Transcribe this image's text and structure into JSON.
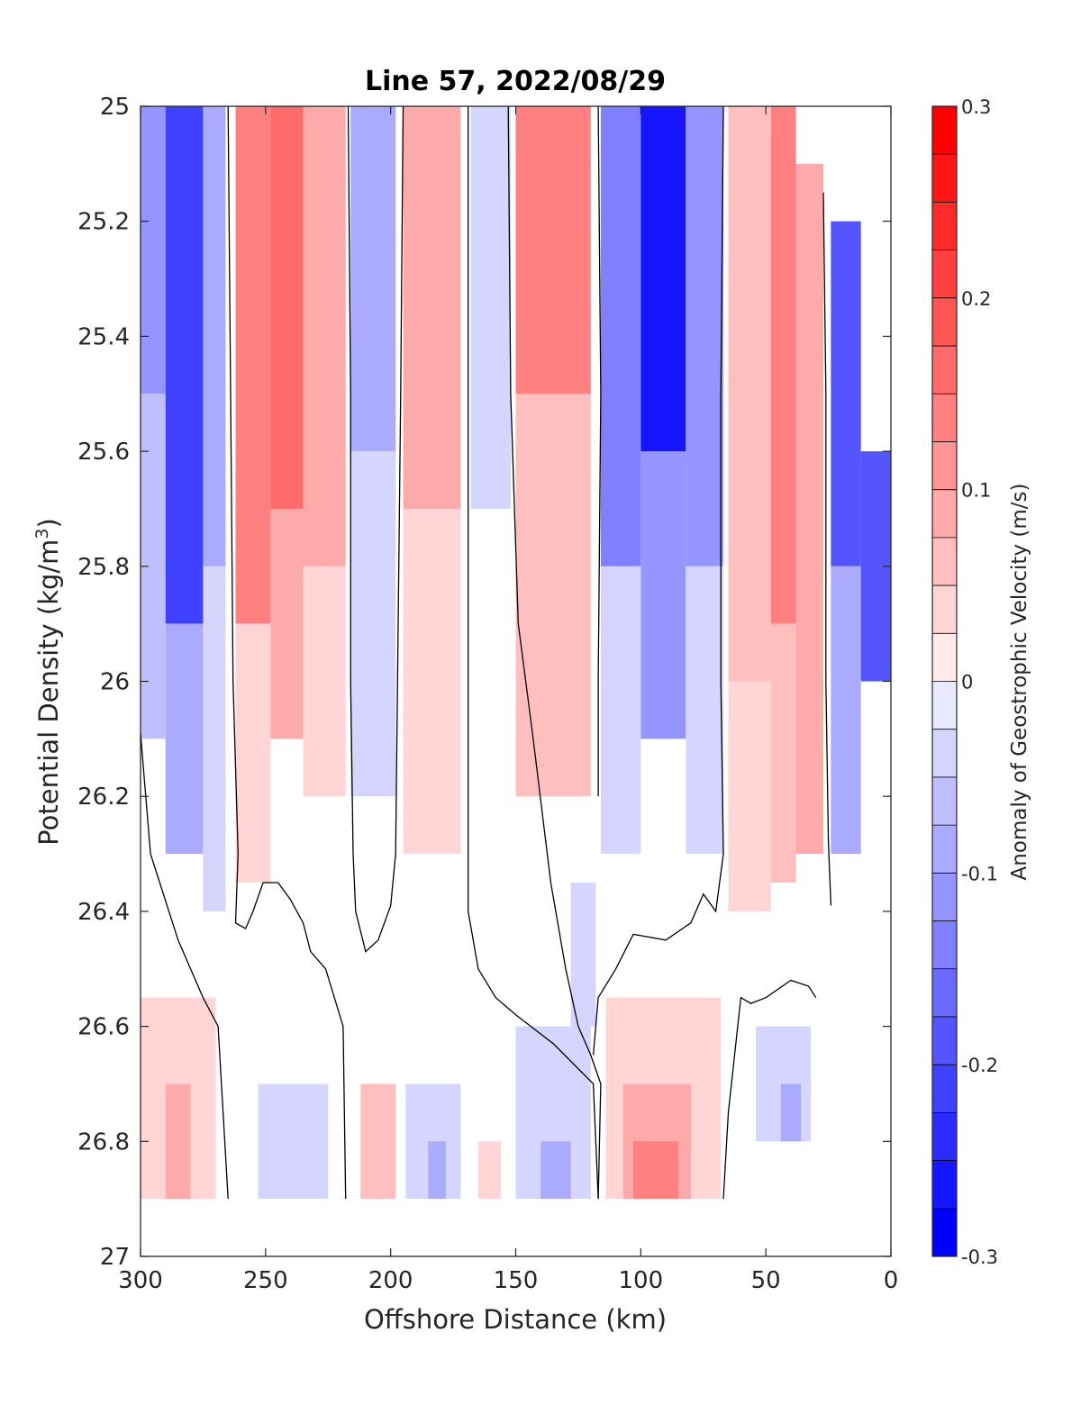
{
  "chart_data": {
    "type": "heatmap",
    "title": "Line 57, 2022/08/29",
    "xlabel": "Offshore Distance (km)",
    "ylabel_main": "Potential Density (kg/m",
    "ylabel_sup": "3",
    "ylabel_end": ")",
    "colorbar_label": "Anomaly of Geostrophic Velocity (m/s)",
    "xlim": [
      300,
      0
    ],
    "ylim": [
      25,
      27
    ],
    "x_ticks": [
      300,
      250,
      200,
      150,
      100,
      50,
      0
    ],
    "x_tick_labels": [
      "300",
      "250",
      "200",
      "150",
      "100",
      "50",
      "0"
    ],
    "y_ticks": [
      25,
      25.2,
      25.4,
      25.6,
      25.8,
      26,
      26.2,
      26.4,
      26.6,
      26.8,
      27
    ],
    "y_tick_labels": [
      "25",
      "25.2",
      "25.4",
      "25.6",
      "25.8",
      "26",
      "26.2",
      "26.4",
      "26.6",
      "26.8",
      "27"
    ],
    "colorbar": {
      "clim": [
        -0.3,
        0.3
      ],
      "levels": 24,
      "ticks": [
        0.3,
        0.2,
        0.1,
        0,
        -0.1,
        -0.2,
        -0.3
      ],
      "tick_labels": [
        "0.3",
        "0.2",
        "0.1",
        "0",
        "-0.1",
        "-0.2",
        "-0.3"
      ],
      "positive_color": "#ff0000",
      "negative_color": "#0000ff",
      "zero_color": "#ffffff"
    },
    "data_extent": {
      "x_max": 300,
      "x_min": 0,
      "density_max": 26.9
    },
    "cells": [
      {
        "x0": 300,
        "x1": 290,
        "y0": 25.0,
        "y1": 25.5,
        "v": -0.12
      },
      {
        "x0": 300,
        "x1": 290,
        "y0": 25.5,
        "y1": 26.1,
        "v": -0.06
      },
      {
        "x0": 290,
        "x1": 275,
        "y0": 25.0,
        "y1": 25.9,
        "v": -0.22
      },
      {
        "x0": 290,
        "x1": 275,
        "y0": 25.9,
        "y1": 26.3,
        "v": -0.1
      },
      {
        "x0": 275,
        "x1": 266,
        "y0": 25.0,
        "y1": 25.8,
        "v": -0.1
      },
      {
        "x0": 275,
        "x1": 266,
        "y0": 25.8,
        "y1": 26.4,
        "v": -0.05
      },
      {
        "x0": 262,
        "x1": 248,
        "y0": 25.0,
        "y1": 25.9,
        "v": 0.13
      },
      {
        "x0": 262,
        "x1": 248,
        "y0": 25.9,
        "y1": 26.35,
        "v": 0.05
      },
      {
        "x0": 248,
        "x1": 235,
        "y0": 25.0,
        "y1": 25.7,
        "v": 0.16
      },
      {
        "x0": 248,
        "x1": 235,
        "y0": 25.7,
        "y1": 26.1,
        "v": 0.08
      },
      {
        "x0": 235,
        "x1": 218,
        "y0": 25.0,
        "y1": 25.8,
        "v": 0.09
      },
      {
        "x0": 235,
        "x1": 218,
        "y0": 25.8,
        "y1": 26.2,
        "v": 0.03
      },
      {
        "x0": 216,
        "x1": 198,
        "y0": 25.0,
        "y1": 25.6,
        "v": -0.1
      },
      {
        "x0": 216,
        "x1": 198,
        "y0": 25.6,
        "y1": 26.2,
        "v": -0.04
      },
      {
        "x0": 195,
        "x1": 172,
        "y0": 25.0,
        "y1": 25.7,
        "v": 0.09
      },
      {
        "x0": 195,
        "x1": 172,
        "y0": 25.7,
        "y1": 26.3,
        "v": 0.04
      },
      {
        "x0": 168,
        "x1": 152,
        "y0": 25.0,
        "y1": 25.7,
        "v": -0.03
      },
      {
        "x0": 150,
        "x1": 120,
        "y0": 25.0,
        "y1": 25.5,
        "v": 0.14
      },
      {
        "x0": 150,
        "x1": 120,
        "y0": 25.5,
        "y1": 26.2,
        "v": 0.06
      },
      {
        "x0": 116,
        "x1": 100,
        "y0": 25.0,
        "y1": 25.8,
        "v": -0.14
      },
      {
        "x0": 116,
        "x1": 100,
        "y0": 25.8,
        "y1": 26.3,
        "v": -0.05
      },
      {
        "x0": 100,
        "x1": 82,
        "y0": 25.0,
        "y1": 25.6,
        "v": -0.26
      },
      {
        "x0": 100,
        "x1": 82,
        "y0": 25.6,
        "y1": 26.1,
        "v": -0.12
      },
      {
        "x0": 82,
        "x1": 67,
        "y0": 25.0,
        "y1": 25.8,
        "v": -0.12
      },
      {
        "x0": 82,
        "x1": 67,
        "y0": 25.8,
        "y1": 26.3,
        "v": -0.05
      },
      {
        "x0": 65,
        "x1": 48,
        "y0": 25.0,
        "y1": 26.0,
        "v": 0.06
      },
      {
        "x0": 65,
        "x1": 48,
        "y0": 26.0,
        "y1": 26.4,
        "v": 0.03
      },
      {
        "x0": 48,
        "x1": 38,
        "y0": 25.0,
        "y1": 25.9,
        "v": 0.15
      },
      {
        "x0": 48,
        "x1": 38,
        "y0": 25.9,
        "y1": 26.35,
        "v": 0.06
      },
      {
        "x0": 38,
        "x1": 27,
        "y0": 25.1,
        "y1": 26.3,
        "v": 0.08
      },
      {
        "x0": 24,
        "x1": 12,
        "y0": 25.2,
        "y1": 25.8,
        "v": -0.18
      },
      {
        "x0": 24,
        "x1": 12,
        "y0": 25.8,
        "y1": 26.3,
        "v": -0.08
      },
      {
        "x0": 12,
        "x1": 0,
        "y0": 25.6,
        "y1": 26.0,
        "v": -0.2
      },
      {
        "x0": 300,
        "x1": 270,
        "y0": 26.55,
        "y1": 26.9,
        "v": 0.05
      },
      {
        "x0": 290,
        "x1": 280,
        "y0": 26.7,
        "y1": 26.9,
        "v": 0.1
      },
      {
        "x0": 253,
        "x1": 225,
        "y0": 26.7,
        "y1": 26.9,
        "v": -0.03
      },
      {
        "x0": 212,
        "x1": 198,
        "y0": 26.7,
        "y1": 26.9,
        "v": 0.06
      },
      {
        "x0": 194,
        "x1": 172,
        "y0": 26.7,
        "y1": 26.9,
        "v": -0.05
      },
      {
        "x0": 185,
        "x1": 178,
        "y0": 26.8,
        "y1": 26.9,
        "v": -0.1
      },
      {
        "x0": 165,
        "x1": 156,
        "y0": 26.8,
        "y1": 26.9,
        "v": 0.05
      },
      {
        "x0": 150,
        "x1": 120,
        "y0": 26.6,
        "y1": 26.9,
        "v": -0.04
      },
      {
        "x0": 140,
        "x1": 128,
        "y0": 26.8,
        "y1": 26.9,
        "v": -0.1
      },
      {
        "x0": 128,
        "x1": 118,
        "y0": 26.35,
        "y1": 26.6,
        "v": -0.03
      },
      {
        "x0": 114,
        "x1": 68,
        "y0": 26.55,
        "y1": 26.9,
        "v": 0.05
      },
      {
        "x0": 107,
        "x1": 80,
        "y0": 26.7,
        "y1": 26.9,
        "v": 0.1
      },
      {
        "x0": 103,
        "x1": 85,
        "y0": 26.8,
        "y1": 26.9,
        "v": 0.14
      },
      {
        "x0": 54,
        "x1": 32,
        "y0": 26.6,
        "y1": 26.8,
        "v": -0.04
      },
      {
        "x0": 44,
        "x1": 36,
        "y0": 26.7,
        "y1": 26.8,
        "v": -0.09
      }
    ],
    "zero_contours": [
      [
        [
          300,
          26.09
        ],
        [
          296,
          26.3
        ],
        [
          285,
          26.45
        ],
        [
          275,
          26.55
        ],
        [
          269,
          26.6
        ],
        [
          265,
          26.9
        ]
      ],
      [
        [
          265,
          25.0
        ],
        [
          264,
          25.5
        ],
        [
          263,
          26.0
        ],
        [
          261,
          26.3
        ],
        [
          262,
          26.42
        ],
        [
          258,
          26.43
        ],
        [
          255,
          26.4
        ],
        [
          251,
          26.35
        ],
        [
          245,
          26.35
        ],
        [
          240,
          26.38
        ],
        [
          235,
          26.42
        ],
        [
          232,
          26.47
        ],
        [
          226,
          26.5
        ],
        [
          219,
          26.6
        ],
        [
          218,
          26.9
        ]
      ],
      [
        [
          217,
          25.0
        ],
        [
          216,
          25.5
        ],
        [
          216,
          26.0
        ],
        [
          215,
          26.3
        ],
        [
          214,
          26.4
        ],
        [
          210,
          26.47
        ],
        [
          205,
          26.45
        ],
        [
          200,
          26.39
        ],
        [
          198,
          26.3
        ],
        [
          196,
          25.5
        ],
        [
          195,
          25.0
        ]
      ],
      [
        [
          169,
          25.0
        ],
        [
          169,
          25.5
        ],
        [
          169,
          26.0
        ],
        [
          169,
          26.4
        ],
        [
          165,
          26.5
        ],
        [
          158,
          26.55
        ],
        [
          150,
          26.58
        ],
        [
          135,
          26.63
        ],
        [
          119,
          26.7
        ],
        [
          117,
          26.9
        ]
      ],
      [
        [
          153,
          25.0
        ],
        [
          152,
          25.5
        ],
        [
          149,
          25.9
        ],
        [
          143,
          26.1
        ],
        [
          136,
          26.35
        ],
        [
          130,
          26.5
        ],
        [
          125,
          26.6
        ],
        [
          120,
          26.65
        ],
        [
          116,
          26.7
        ],
        [
          117,
          26.9
        ]
      ],
      [
        [
          117,
          25.0
        ],
        [
          116,
          25.5
        ],
        [
          117,
          26.0
        ],
        [
          117,
          26.2
        ]
      ],
      [
        [
          67,
          25.0
        ],
        [
          68,
          25.5
        ],
        [
          68,
          26.0
        ],
        [
          67,
          26.3
        ],
        [
          70,
          26.4
        ],
        [
          75,
          26.37
        ],
        [
          80,
          26.42
        ],
        [
          90,
          26.45
        ],
        [
          103,
          26.44
        ],
        [
          110,
          26.5
        ],
        [
          117,
          26.55
        ],
        [
          119,
          26.65
        ]
      ],
      [
        [
          67,
          26.9
        ],
        [
          65,
          26.75
        ],
        [
          60,
          26.55
        ],
        [
          56,
          26.56
        ],
        [
          50,
          26.55
        ],
        [
          40,
          26.52
        ],
        [
          33,
          26.53
        ],
        [
          30,
          26.55
        ]
      ],
      [
        [
          27,
          25.15
        ],
        [
          26,
          25.5
        ],
        [
          26,
          26.0
        ],
        [
          25,
          26.28
        ],
        [
          24,
          26.39
        ]
      ]
    ]
  }
}
